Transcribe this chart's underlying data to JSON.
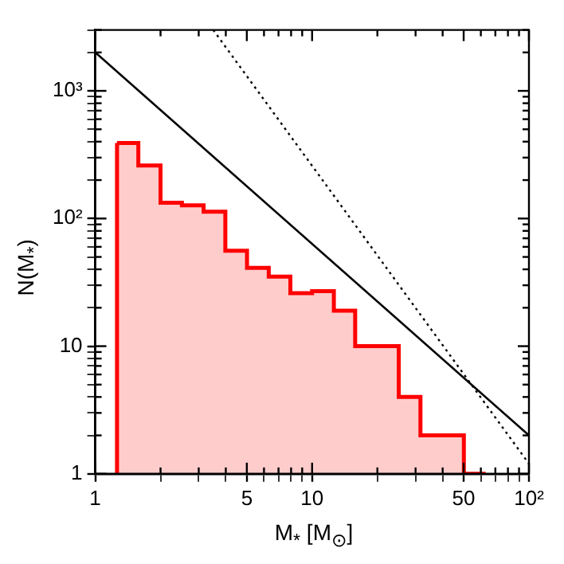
{
  "chart_data": {
    "type": "histogram",
    "xlabel": "M$_{*}$ [M$_{⊙}$]",
    "ylabel": "N(M$_{*}$)",
    "log": "xy",
    "grid": false,
    "xlim": [
      1,
      100
    ],
    "ylim": [
      1,
      3000
    ],
    "xticks": [
      1,
      {
        "value": 2,
        "label": null
      },
      {
        "value": 3,
        "label": null
      },
      {
        "value": 4,
        "label": null
      },
      5,
      {
        "value": 6,
        "label": null
      },
      {
        "value": 7,
        "label": null
      },
      {
        "value": 8,
        "label": null
      },
      {
        "value": 9,
        "label": null
      },
      10,
      {
        "value": 20,
        "label": null
      },
      {
        "value": 30,
        "label": null
      },
      {
        "value": 40,
        "label": null
      },
      50,
      {
        "value": 60,
        "label": null
      },
      {
        "value": 70,
        "label": null
      },
      {
        "value": 80,
        "label": null
      },
      {
        "value": 90,
        "label": null
      },
      {
        "value": 100,
        "label": "10²"
      }
    ],
    "yticks": [
      1,
      {
        "value": 2,
        "label": null
      },
      {
        "value": 3,
        "label": null
      },
      {
        "value": 4,
        "label": null
      },
      {
        "value": 5,
        "label": null
      },
      {
        "value": 6,
        "label": null
      },
      {
        "value": 7,
        "label": null
      },
      {
        "value": 8,
        "label": null
      },
      {
        "value": 9,
        "label": null
      },
      10,
      {
        "value": 20,
        "label": null
      },
      {
        "value": 30,
        "label": null
      },
      {
        "value": 40,
        "label": null
      },
      {
        "value": 50,
        "label": null
      },
      {
        "value": 60,
        "label": null
      },
      {
        "value": 70,
        "label": null
      },
      {
        "value": 80,
        "label": null
      },
      {
        "value": 90,
        "label": null
      },
      {
        "value": 100,
        "label": "10²"
      },
      {
        "value": 200,
        "label": null
      },
      {
        "value": 300,
        "label": null
      },
      {
        "value": 400,
        "label": null
      },
      {
        "value": 500,
        "label": null
      },
      {
        "value": 600,
        "label": null
      },
      {
        "value": 700,
        "label": null
      },
      {
        "value": 800,
        "label": null
      },
      {
        "value": 900,
        "label": null
      },
      {
        "value": 1000,
        "label": "10³"
      },
      {
        "value": 2000,
        "label": null
      },
      {
        "value": 3000,
        "label": null
      }
    ],
    "series": [
      {
        "type": "histogram",
        "color": "#ff0000",
        "bins": [
          1.26,
          1.58,
          2.0,
          2.51,
          3.16,
          3.98,
          5.01,
          6.31,
          7.94,
          10.0,
          12.6,
          15.8,
          20.0,
          25.1,
          31.6,
          39.8,
          50.1,
          63.1
        ],
        "values": [
          390,
          260,
          133,
          127,
          113,
          56,
          41,
          35,
          26,
          27,
          19,
          10,
          10,
          4,
          2,
          2,
          1
        ]
      },
      {
        "type": "line",
        "color": "#000000",
        "line_style": "solid",
        "x": [
          1,
          100
        ],
        "values": [
          2000,
          2
        ]
      },
      {
        "type": "line",
        "color": "#000000",
        "line_style": "dotted",
        "x": [
          3.5,
          100
        ],
        "values": [
          3000,
          1.2
        ]
      }
    ]
  }
}
